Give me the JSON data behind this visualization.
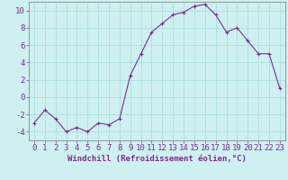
{
  "x": [
    0,
    1,
    2,
    3,
    4,
    5,
    6,
    7,
    8,
    9,
    10,
    11,
    12,
    13,
    14,
    15,
    16,
    17,
    18,
    19,
    20,
    21,
    22,
    23
  ],
  "y": [
    -3,
    -1.5,
    -2.5,
    -4,
    -3.5,
    -4,
    -3,
    -3.2,
    -2.5,
    2.5,
    5,
    7.5,
    8.5,
    9.5,
    9.8,
    10.5,
    10.7,
    9.5,
    7.5,
    8,
    6.5,
    5,
    5,
    1
  ],
  "line_color": "#7b2d8b",
  "marker": "+",
  "background_color": "#cef0f0",
  "grid_color": "#aadddd",
  "axis_color": "#888888",
  "tick_color": "#7b2d8b",
  "xlabel": "Windchill (Refroidissement éolien,°C)",
  "ylim": [
    -5,
    11
  ],
  "xlim": [
    -0.5,
    23.5
  ],
  "yticks": [
    -4,
    -2,
    0,
    2,
    4,
    6,
    8,
    10
  ],
  "xticks": [
    0,
    1,
    2,
    3,
    4,
    5,
    6,
    7,
    8,
    9,
    10,
    11,
    12,
    13,
    14,
    15,
    16,
    17,
    18,
    19,
    20,
    21,
    22,
    23
  ],
  "font_color": "#7b2d8b",
  "label_fontsize": 6.5,
  "tick_fontsize": 6.5
}
